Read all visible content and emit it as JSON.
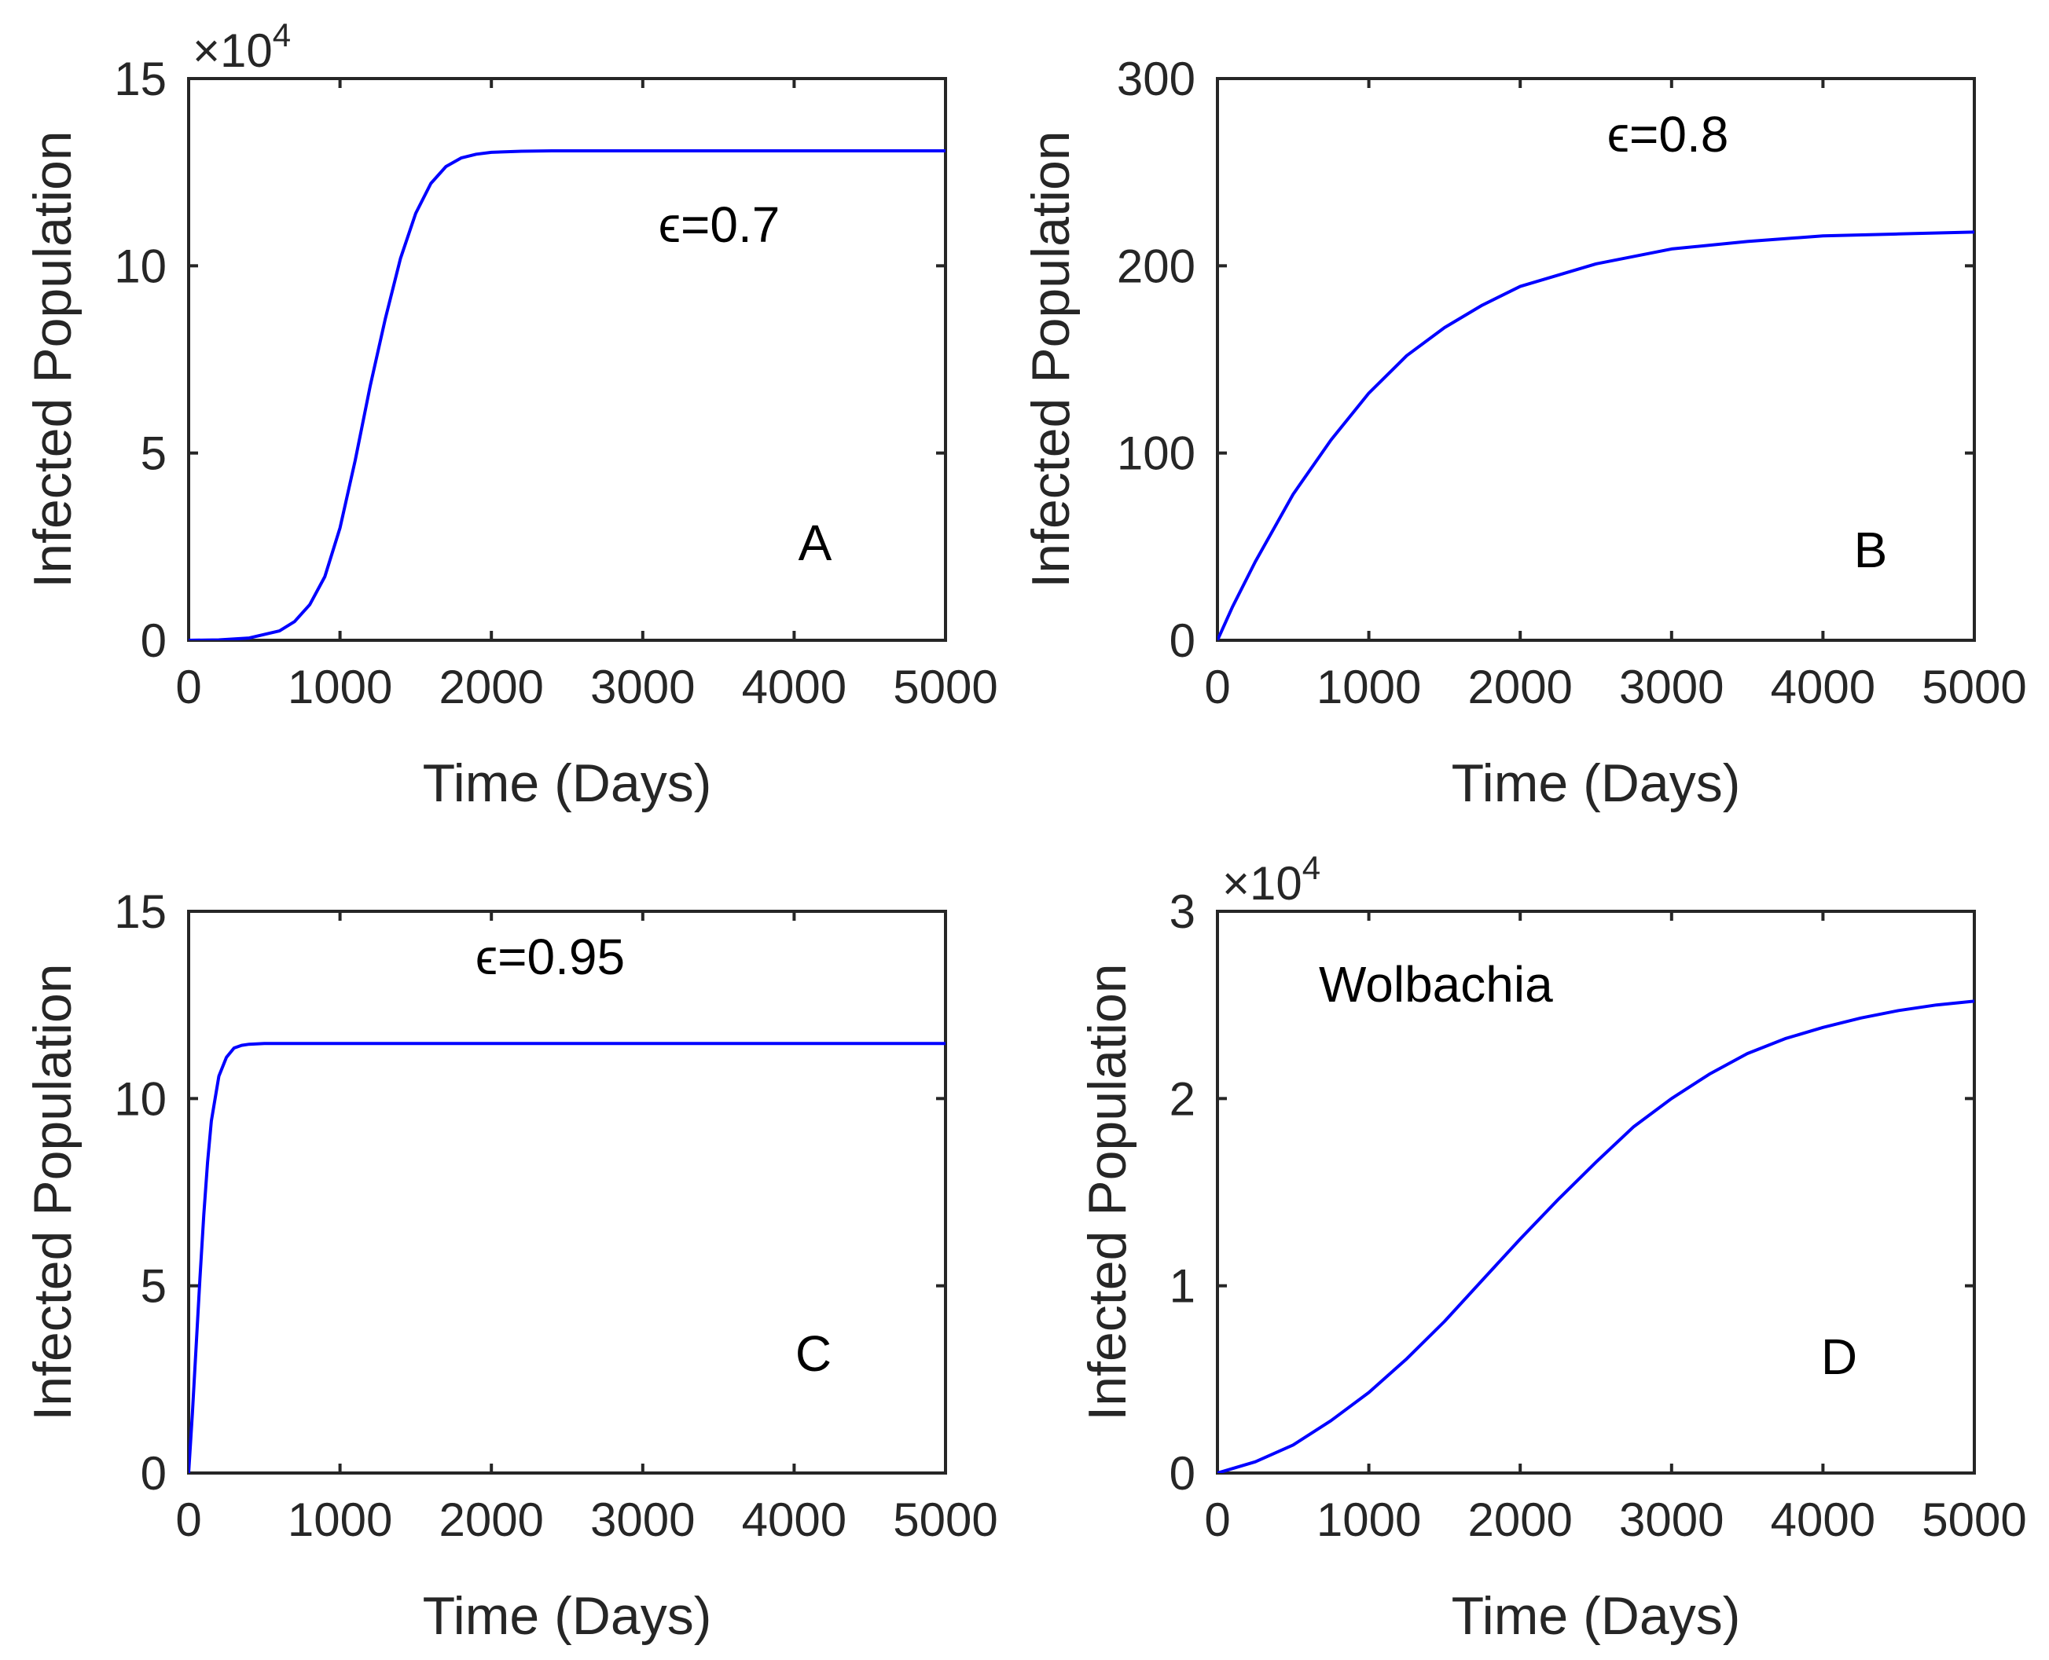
{
  "chart_data": [
    {
      "panel": "A",
      "type": "line",
      "xlabel": "Time (Days)",
      "ylabel": "Infected Population",
      "xlim": [
        0,
        5000
      ],
      "ylim": [
        0,
        150000
      ],
      "xticks": [
        0,
        1000,
        2000,
        3000,
        4000,
        5000
      ],
      "yticks": [
        0,
        50000,
        100000,
        150000
      ],
      "ytick_labels": [
        "0",
        "5",
        "10",
        "15"
      ],
      "xtick_labels": [
        "0",
        "1000",
        "2000",
        "3000",
        "4000",
        "5000"
      ],
      "multiplier": {
        "base": "×10",
        "exp": "4"
      },
      "annotation": "ϵ=0.7",
      "panel_label": "A",
      "series": [
        {
          "name": "infected",
          "color": "#0000ff",
          "x": [
            0,
            200,
            400,
            600,
            700,
            800,
            900,
            1000,
            1100,
            1200,
            1300,
            1400,
            1500,
            1600,
            1700,
            1800,
            1900,
            2000,
            2200,
            2400,
            2600,
            3000,
            4000,
            5000
          ],
          "y": [
            0,
            100,
            600,
            2500,
            5000,
            9500,
            17000,
            30000,
            48000,
            68000,
            86000,
            102000,
            114000,
            122000,
            126500,
            128800,
            129800,
            130300,
            130600,
            130700,
            130700,
            130700,
            130700,
            130700
          ]
        }
      ]
    },
    {
      "panel": "B",
      "type": "line",
      "xlabel": "Time (Days)",
      "ylabel": "Infected Population",
      "xlim": [
        0,
        5000
      ],
      "ylim": [
        0,
        300
      ],
      "xticks": [
        0,
        1000,
        2000,
        3000,
        4000,
        5000
      ],
      "yticks": [
        0,
        100,
        200,
        300
      ],
      "ytick_labels": [
        "0",
        "100",
        "200",
        "300"
      ],
      "xtick_labels": [
        "0",
        "1000",
        "2000",
        "3000",
        "4000",
        "5000"
      ],
      "multiplier": null,
      "annotation": "ϵ=0.8",
      "panel_label": "B",
      "series": [
        {
          "name": "infected",
          "color": "#0000ff",
          "x": [
            0,
            100,
            250,
            500,
            750,
            1000,
            1250,
            1500,
            1750,
            2000,
            2500,
            3000,
            3500,
            4000,
            4500,
            5000
          ],
          "y": [
            0,
            18,
            42,
            78,
            107,
            132,
            152,
            167,
            179,
            189,
            201,
            209,
            213,
            216,
            217,
            218
          ]
        }
      ]
    },
    {
      "panel": "C",
      "type": "line",
      "xlabel": "Time (Days)",
      "ylabel": "Infected Population",
      "xlim": [
        0,
        5000
      ],
      "ylim": [
        0,
        15
      ],
      "xticks": [
        0,
        1000,
        2000,
        3000,
        4000,
        5000
      ],
      "yticks": [
        0,
        5,
        10,
        15
      ],
      "ytick_labels": [
        "0",
        "5",
        "10",
        "15"
      ],
      "xtick_labels": [
        "0",
        "1000",
        "2000",
        "3000",
        "4000",
        "5000"
      ],
      "multiplier": null,
      "annotation": "ϵ=0.95",
      "panel_label": "C",
      "series": [
        {
          "name": "infected",
          "color": "#0000ff",
          "x": [
            0,
            25,
            50,
            75,
            100,
            125,
            150,
            200,
            250,
            300,
            350,
            400,
            500,
            700,
            1000,
            2000,
            3000,
            4000,
            5000
          ],
          "y": [
            0,
            1.6,
            3.4,
            5.2,
            6.9,
            8.3,
            9.4,
            10.6,
            11.1,
            11.35,
            11.42,
            11.45,
            11.47,
            11.47,
            11.47,
            11.47,
            11.47,
            11.47,
            11.47
          ]
        }
      ]
    },
    {
      "panel": "D",
      "type": "line",
      "xlabel": "Time (Days)",
      "ylabel": "Infected Population",
      "xlim": [
        0,
        5000
      ],
      "ylim": [
        0,
        30000
      ],
      "xticks": [
        0,
        1000,
        2000,
        3000,
        4000,
        5000
      ],
      "yticks": [
        0,
        10000,
        20000,
        30000
      ],
      "ytick_labels": [
        "0",
        "1",
        "2",
        "3"
      ],
      "xtick_labels": [
        "0",
        "1000",
        "2000",
        "3000",
        "4000",
        "5000"
      ],
      "multiplier": {
        "base": "×10",
        "exp": "4"
      },
      "annotation": "Wolbachia",
      "panel_label": "D",
      "series": [
        {
          "name": "infected",
          "color": "#0000ff",
          "x": [
            0,
            250,
            500,
            750,
            1000,
            1250,
            1500,
            1750,
            2000,
            2250,
            2500,
            2750,
            3000,
            3250,
            3500,
            3750,
            4000,
            4250,
            4500,
            4750,
            5000
          ],
          "y": [
            0,
            600,
            1500,
            2800,
            4300,
            6100,
            8100,
            10300,
            12500,
            14600,
            16600,
            18500,
            20000,
            21300,
            22400,
            23200,
            23800,
            24300,
            24700,
            25000,
            25200
          ]
        }
      ]
    }
  ]
}
